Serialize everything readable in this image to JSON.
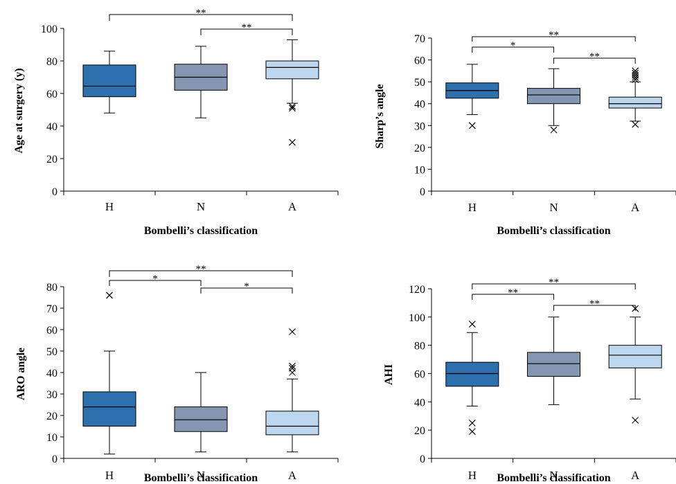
{
  "chart_data": [
    {
      "type": "box",
      "categories": [
        "H",
        "N",
        "A"
      ],
      "colors": [
        "#2e6fad",
        "#8496b0",
        "#bdd7ee"
      ],
      "xlabel": "Bombelli’s classification",
      "ylabel": "Age at surgery (y)",
      "ylim": [
        0,
        100
      ],
      "yticks": [
        0,
        20,
        40,
        60,
        80,
        100
      ],
      "boxes": [
        {
          "min": 48,
          "q1": 58,
          "median": 64.5,
          "q3": 77.5,
          "max": 86,
          "outliers": []
        },
        {
          "min": 45,
          "q1": 62,
          "median": 70,
          "q3": 78,
          "max": 89,
          "outliers": []
        },
        {
          "min": 54,
          "q1": 69,
          "median": 76,
          "q3": 80,
          "max": 93,
          "outliers": [
            51,
            52,
            30
          ]
        }
      ],
      "significance": [
        {
          "from": 0,
          "to": 2,
          "label": "**"
        },
        {
          "from": 1,
          "to": 2,
          "label": "**"
        }
      ]
    },
    {
      "type": "box",
      "categories": [
        "H",
        "N",
        "A"
      ],
      "colors": [
        "#2e6fad",
        "#8496b0",
        "#bdd7ee"
      ],
      "xlabel": "Bombelli’s classification",
      "ylabel": "Sharp’s angle",
      "ylim": [
        0,
        70
      ],
      "yticks": [
        0,
        10,
        20,
        30,
        40,
        50,
        60,
        70
      ],
      "boxes": [
        {
          "min": 35,
          "q1": 42.5,
          "median": 46,
          "q3": 49.5,
          "max": 58,
          "outliers": [
            30
          ]
        },
        {
          "min": 30,
          "q1": 40,
          "median": 44,
          "q3": 47,
          "max": 56,
          "outliers": [
            28
          ]
        },
        {
          "min": 32,
          "q1": 38,
          "median": 40,
          "q3": 43,
          "max": 50,
          "outliers": [
            51,
            52,
            53,
            54,
            55,
            30.5
          ]
        }
      ],
      "significance": [
        {
          "from": 0,
          "to": 2,
          "label": "**"
        },
        {
          "from": 0,
          "to": 1,
          "label": "*"
        },
        {
          "from": 1,
          "to": 2,
          "label": "**"
        }
      ]
    },
    {
      "type": "box",
      "categories": [
        "H",
        "N",
        "A"
      ],
      "colors": [
        "#2e6fad",
        "#8496b0",
        "#bdd7ee"
      ],
      "xlabel": "Bombelli’s classification",
      "ylabel": "ARO angle",
      "ylim": [
        0,
        80
      ],
      "yticks": [
        0,
        10,
        20,
        30,
        40,
        50,
        60,
        70,
        80
      ],
      "boxes": [
        {
          "min": 2,
          "q1": 15,
          "median": 24,
          "q3": 31,
          "max": 50,
          "outliers": [
            76
          ]
        },
        {
          "min": 3,
          "q1": 12.5,
          "median": 18,
          "q3": 24,
          "max": 40,
          "outliers": []
        },
        {
          "min": 3,
          "q1": 11,
          "median": 15,
          "q3": 22,
          "max": 37,
          "outliers": [
            40,
            42,
            43,
            59
          ]
        }
      ],
      "significance": [
        {
          "from": 0,
          "to": 2,
          "label": "**"
        },
        {
          "from": 0,
          "to": 1,
          "label": "*"
        },
        {
          "from": 1,
          "to": 2,
          "label": "*"
        }
      ]
    },
    {
      "type": "box",
      "categories": [
        "H",
        "N",
        "A"
      ],
      "colors": [
        "#2e6fad",
        "#8496b0",
        "#bdd7ee"
      ],
      "xlabel": "Bombelli’s classification",
      "ylabel": "AHI",
      "ylim": [
        0,
        120
      ],
      "yticks": [
        0,
        20,
        40,
        60,
        80,
        100,
        120
      ],
      "boxes": [
        {
          "min": 37,
          "q1": 51,
          "median": 60,
          "q3": 68,
          "max": 89,
          "outliers": [
            95,
            25,
            19
          ]
        },
        {
          "min": 38,
          "q1": 58,
          "median": 67,
          "q3": 75,
          "max": 100,
          "outliers": []
        },
        {
          "min": 42,
          "q1": 64,
          "median": 73,
          "q3": 80,
          "max": 100,
          "outliers": [
            106,
            27
          ]
        }
      ],
      "significance": [
        {
          "from": 0,
          "to": 2,
          "label": "**"
        },
        {
          "from": 0,
          "to": 1,
          "label": "**"
        },
        {
          "from": 1,
          "to": 2,
          "label": "**"
        }
      ]
    }
  ]
}
